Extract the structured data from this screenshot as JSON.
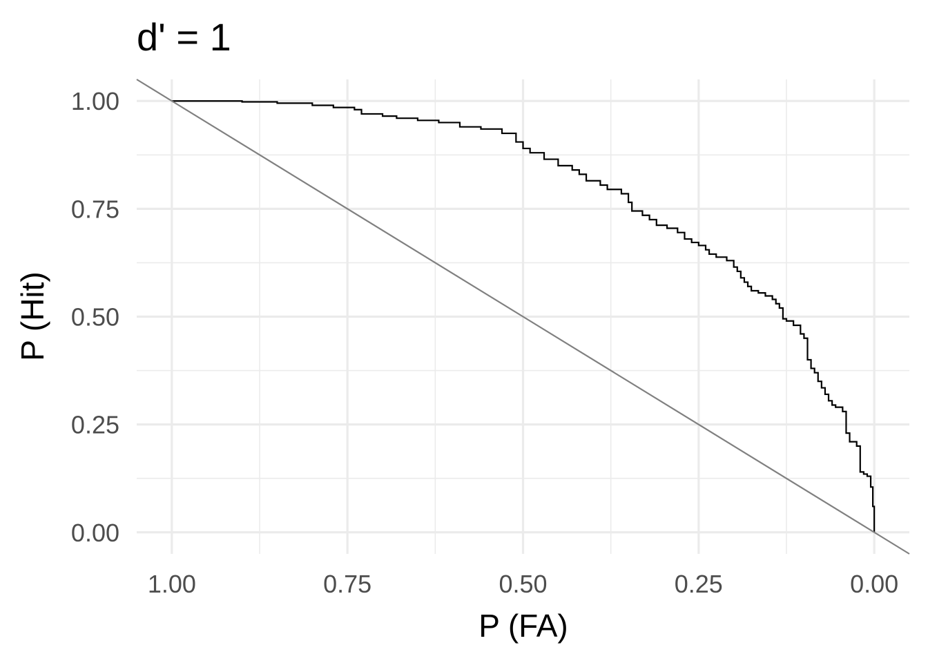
{
  "chart_data": {
    "type": "line",
    "title": "d' = 1",
    "xlabel": "P (FA)",
    "ylabel": "P (Hit)",
    "xlim": [
      1.05,
      -0.05
    ],
    "ylim": [
      -0.05,
      1.05
    ],
    "x_reversed": true,
    "x_ticks": [
      1.0,
      0.75,
      0.5,
      0.25,
      0.0
    ],
    "x_tick_labels": [
      "1.00",
      "0.75",
      "0.50",
      "0.25",
      "0.00"
    ],
    "y_ticks": [
      0.0,
      0.25,
      0.5,
      0.75,
      1.0
    ],
    "y_tick_labels": [
      "0.00",
      "0.25",
      "0.50",
      "0.75",
      "1.00"
    ],
    "grid": true,
    "series": [
      {
        "type": "step",
        "color": "#000000",
        "points": [
          [
            1.0,
            1.0
          ],
          [
            0.9,
            1.0
          ],
          [
            0.9,
            0.998
          ],
          [
            0.85,
            0.998
          ],
          [
            0.85,
            0.995
          ],
          [
            0.8,
            0.995
          ],
          [
            0.8,
            0.99
          ],
          [
            0.77,
            0.99
          ],
          [
            0.77,
            0.985
          ],
          [
            0.74,
            0.985
          ],
          [
            0.74,
            0.98
          ],
          [
            0.73,
            0.98
          ],
          [
            0.73,
            0.97
          ],
          [
            0.7,
            0.97
          ],
          [
            0.7,
            0.965
          ],
          [
            0.68,
            0.965
          ],
          [
            0.68,
            0.96
          ],
          [
            0.65,
            0.96
          ],
          [
            0.65,
            0.955
          ],
          [
            0.62,
            0.955
          ],
          [
            0.62,
            0.95
          ],
          [
            0.59,
            0.95
          ],
          [
            0.59,
            0.94
          ],
          [
            0.56,
            0.94
          ],
          [
            0.56,
            0.935
          ],
          [
            0.53,
            0.935
          ],
          [
            0.53,
            0.925
          ],
          [
            0.51,
            0.925
          ],
          [
            0.51,
            0.905
          ],
          [
            0.5,
            0.905
          ],
          [
            0.5,
            0.89
          ],
          [
            0.49,
            0.89
          ],
          [
            0.49,
            0.88
          ],
          [
            0.47,
            0.88
          ],
          [
            0.47,
            0.865
          ],
          [
            0.45,
            0.865
          ],
          [
            0.45,
            0.85
          ],
          [
            0.43,
            0.85
          ],
          [
            0.43,
            0.84
          ],
          [
            0.42,
            0.84
          ],
          [
            0.42,
            0.83
          ],
          [
            0.41,
            0.83
          ],
          [
            0.41,
            0.815
          ],
          [
            0.39,
            0.815
          ],
          [
            0.39,
            0.805
          ],
          [
            0.38,
            0.805
          ],
          [
            0.38,
            0.795
          ],
          [
            0.36,
            0.795
          ],
          [
            0.36,
            0.785
          ],
          [
            0.35,
            0.785
          ],
          [
            0.35,
            0.765
          ],
          [
            0.345,
            0.765
          ],
          [
            0.345,
            0.745
          ],
          [
            0.33,
            0.745
          ],
          [
            0.33,
            0.735
          ],
          [
            0.32,
            0.735
          ],
          [
            0.32,
            0.725
          ],
          [
            0.31,
            0.725
          ],
          [
            0.31,
            0.712
          ],
          [
            0.295,
            0.712
          ],
          [
            0.295,
            0.705
          ],
          [
            0.28,
            0.705
          ],
          [
            0.28,
            0.695
          ],
          [
            0.27,
            0.695
          ],
          [
            0.27,
            0.68
          ],
          [
            0.26,
            0.68
          ],
          [
            0.26,
            0.672
          ],
          [
            0.25,
            0.672
          ],
          [
            0.25,
            0.665
          ],
          [
            0.24,
            0.665
          ],
          [
            0.24,
            0.655
          ],
          [
            0.235,
            0.655
          ],
          [
            0.235,
            0.645
          ],
          [
            0.225,
            0.645
          ],
          [
            0.225,
            0.638
          ],
          [
            0.21,
            0.638
          ],
          [
            0.21,
            0.63
          ],
          [
            0.2,
            0.63
          ],
          [
            0.2,
            0.615
          ],
          [
            0.195,
            0.615
          ],
          [
            0.195,
            0.605
          ],
          [
            0.19,
            0.605
          ],
          [
            0.19,
            0.59
          ],
          [
            0.185,
            0.59
          ],
          [
            0.185,
            0.58
          ],
          [
            0.18,
            0.58
          ],
          [
            0.18,
            0.57
          ],
          [
            0.175,
            0.57
          ],
          [
            0.175,
            0.56
          ],
          [
            0.165,
            0.56
          ],
          [
            0.165,
            0.555
          ],
          [
            0.155,
            0.555
          ],
          [
            0.155,
            0.548
          ],
          [
            0.145,
            0.548
          ],
          [
            0.145,
            0.54
          ],
          [
            0.14,
            0.54
          ],
          [
            0.14,
            0.53
          ],
          [
            0.135,
            0.53
          ],
          [
            0.135,
            0.52
          ],
          [
            0.13,
            0.52
          ],
          [
            0.13,
            0.495
          ],
          [
            0.125,
            0.495
          ],
          [
            0.125,
            0.49
          ],
          [
            0.115,
            0.49
          ],
          [
            0.115,
            0.48
          ],
          [
            0.105,
            0.48
          ],
          [
            0.105,
            0.46
          ],
          [
            0.1,
            0.46
          ],
          [
            0.1,
            0.45
          ],
          [
            0.095,
            0.45
          ],
          [
            0.095,
            0.4
          ],
          [
            0.09,
            0.4
          ],
          [
            0.09,
            0.38
          ],
          [
            0.085,
            0.38
          ],
          [
            0.085,
            0.37
          ],
          [
            0.08,
            0.37
          ],
          [
            0.08,
            0.35
          ],
          [
            0.075,
            0.35
          ],
          [
            0.075,
            0.335
          ],
          [
            0.07,
            0.335
          ],
          [
            0.07,
            0.32
          ],
          [
            0.065,
            0.32
          ],
          [
            0.065,
            0.305
          ],
          [
            0.06,
            0.305
          ],
          [
            0.06,
            0.295
          ],
          [
            0.055,
            0.295
          ],
          [
            0.055,
            0.29
          ],
          [
            0.045,
            0.29
          ],
          [
            0.045,
            0.28
          ],
          [
            0.04,
            0.28
          ],
          [
            0.04,
            0.23
          ],
          [
            0.035,
            0.23
          ],
          [
            0.035,
            0.21
          ],
          [
            0.025,
            0.21
          ],
          [
            0.025,
            0.2
          ],
          [
            0.02,
            0.2
          ],
          [
            0.02,
            0.14
          ],
          [
            0.015,
            0.14
          ],
          [
            0.015,
            0.135
          ],
          [
            0.01,
            0.135
          ],
          [
            0.01,
            0.13
          ],
          [
            0.005,
            0.13
          ],
          [
            0.005,
            0.105
          ],
          [
            0.002,
            0.105
          ],
          [
            0.002,
            0.06
          ],
          [
            0.0,
            0.06
          ],
          [
            0.0,
            0.0
          ]
        ]
      },
      {
        "type": "reference-line",
        "color": "#808080",
        "points": [
          [
            1.05,
            1.05
          ],
          [
            -0.05,
            -0.05
          ]
        ]
      }
    ]
  }
}
